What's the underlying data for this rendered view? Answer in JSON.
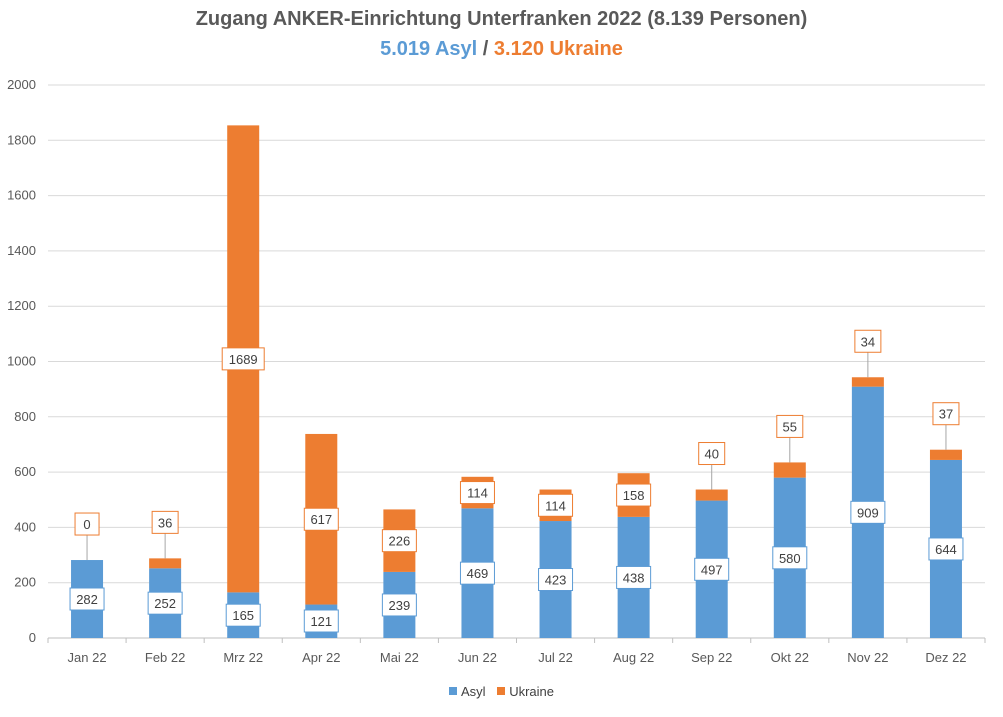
{
  "colors": {
    "asyl": "#5B9BD5",
    "ukraine": "#ED7D31",
    "grid": "#D9D9D9",
    "text": "#595959"
  },
  "header": {
    "title": "Zugang ANKER-Einrichtung Unterfranken 2022 (8.139 Personen)",
    "subtitle_asyl": "5.019 Asyl",
    "subtitle_sep": " / ",
    "subtitle_ukraine": "3.120 Ukraine"
  },
  "chart_data": {
    "type": "bar",
    "stacked": true,
    "categories": [
      "Jan 22",
      "Feb 22",
      "Mrz 22",
      "Apr 22",
      "Mai 22",
      "Jun 22",
      "Jul 22",
      "Aug 22",
      "Sep 22",
      "Okt 22",
      "Nov 22",
      "Dez 22"
    ],
    "series": [
      {
        "name": "Asyl",
        "values": [
          282,
          252,
          165,
          121,
          239,
          469,
          423,
          438,
          497,
          580,
          909,
          644
        ]
      },
      {
        "name": "Ukraine",
        "values": [
          0,
          36,
          1689,
          617,
          226,
          114,
          114,
          158,
          40,
          55,
          34,
          37
        ]
      }
    ],
    "ylim": [
      0,
      2000
    ],
    "yticks": [
      0,
      200,
      400,
      600,
      800,
      1000,
      1200,
      1400,
      1600,
      1800,
      2000
    ],
    "grid": true,
    "legend_position": "bottom"
  }
}
